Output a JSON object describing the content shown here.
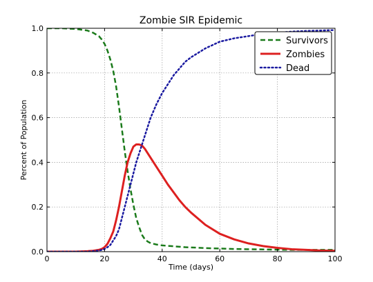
{
  "chart_data": {
    "type": "line",
    "title": "Zombie SIR Epidemic",
    "xlabel": "Time (days)",
    "ylabel": "Percent of Population",
    "xlim": [
      0,
      100
    ],
    "ylim": [
      0.0,
      1.0
    ],
    "xticks": [
      0,
      20,
      40,
      60,
      80,
      100
    ],
    "xtick_labels": [
      "0",
      "20",
      "40",
      "60",
      "80",
      "100"
    ],
    "yticks": [
      0.0,
      0.2,
      0.4,
      0.6,
      0.8,
      1.0
    ],
    "ytick_labels": [
      "0.0",
      "0.2",
      "0.4",
      "0.6",
      "0.8",
      "1.0"
    ],
    "grid": true,
    "legend_position": "top-right",
    "x": [
      0,
      5,
      10,
      14,
      16,
      18,
      19,
      20,
      21,
      22,
      23,
      24,
      25,
      26,
      27,
      28,
      29,
      30,
      31,
      32,
      33,
      34,
      35,
      36,
      38,
      40,
      42,
      44,
      46,
      48,
      50,
      55,
      60,
      65,
      70,
      75,
      80,
      85,
      90,
      95,
      100
    ],
    "series": [
      {
        "name": "Survivors",
        "style": "dashed",
        "color": "#1a7a1a",
        "values": [
          1.0,
          1.0,
          0.997,
          0.99,
          0.98,
          0.965,
          0.95,
          0.93,
          0.9,
          0.86,
          0.81,
          0.74,
          0.65,
          0.55,
          0.45,
          0.36,
          0.28,
          0.21,
          0.15,
          0.11,
          0.075,
          0.055,
          0.045,
          0.038,
          0.032,
          0.028,
          0.026,
          0.024,
          0.022,
          0.02,
          0.019,
          0.016,
          0.014,
          0.012,
          0.011,
          0.01,
          0.009,
          0.008,
          0.008,
          0.008,
          0.008
        ]
      },
      {
        "name": "Zombies",
        "style": "solid",
        "color": "#dd2020",
        "values": [
          0.0,
          0.0,
          0.0,
          0.002,
          0.004,
          0.008,
          0.012,
          0.02,
          0.035,
          0.06,
          0.09,
          0.14,
          0.2,
          0.27,
          0.34,
          0.4,
          0.44,
          0.47,
          0.48,
          0.48,
          0.475,
          0.46,
          0.44,
          0.42,
          0.38,
          0.34,
          0.3,
          0.265,
          0.23,
          0.2,
          0.175,
          0.12,
          0.08,
          0.055,
          0.037,
          0.025,
          0.017,
          0.011,
          0.008,
          0.005,
          0.004
        ]
      },
      {
        "name": "Dead",
        "style": "dotted",
        "color": "#1a1aa0",
        "values": [
          0.0,
          0.0,
          0.0,
          0.0,
          0.002,
          0.005,
          0.008,
          0.012,
          0.02,
          0.03,
          0.05,
          0.07,
          0.1,
          0.15,
          0.2,
          0.25,
          0.3,
          0.35,
          0.4,
          0.44,
          0.48,
          0.52,
          0.56,
          0.6,
          0.66,
          0.71,
          0.75,
          0.79,
          0.82,
          0.85,
          0.87,
          0.91,
          0.94,
          0.955,
          0.965,
          0.975,
          0.98,
          0.985,
          0.988,
          0.99,
          0.992
        ]
      }
    ]
  }
}
